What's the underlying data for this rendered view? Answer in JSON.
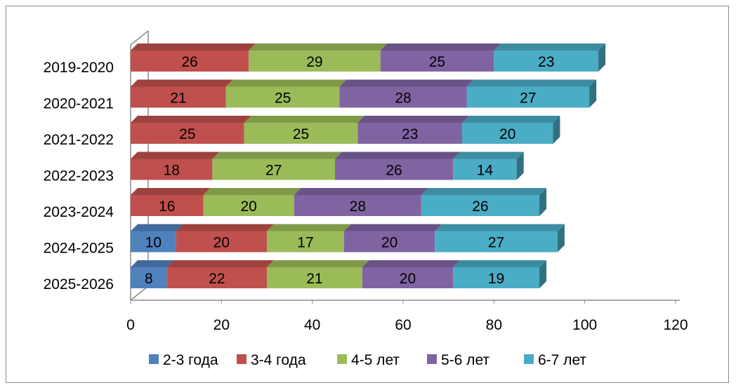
{
  "chart_data": {
    "type": "bar",
    "orientation": "horizontal",
    "stacked": true,
    "three_d": true,
    "categories": [
      "2019-2020",
      "2020-2021",
      "2021-2022",
      "2022-2023",
      "2023-2024",
      "2024-2025",
      "2025-2026"
    ],
    "series": [
      {
        "name": "2-3 года",
        "color": "#4f81bd",
        "values": [
          null,
          null,
          null,
          null,
          null,
          10,
          8
        ]
      },
      {
        "name": "3-4 года",
        "color": "#c0504d",
        "values": [
          26,
          21,
          25,
          18,
          16,
          20,
          22
        ]
      },
      {
        "name": "4-5 лет",
        "color": "#9bbb59",
        "values": [
          29,
          25,
          25,
          27,
          20,
          17,
          21
        ]
      },
      {
        "name": "5-6 лет",
        "color": "#8064a2",
        "values": [
          25,
          28,
          23,
          26,
          28,
          20,
          20
        ]
      },
      {
        "name": "6-7 лет",
        "color": "#4bacc6",
        "values": [
          23,
          27,
          20,
          14,
          26,
          27,
          19
        ]
      }
    ],
    "xlim": [
      0,
      120
    ],
    "xticks": [
      "0",
      "20",
      "40",
      "60",
      "80",
      "100",
      "120"
    ],
    "grid": false,
    "data_labels": true,
    "legend_position": "bottom"
  }
}
